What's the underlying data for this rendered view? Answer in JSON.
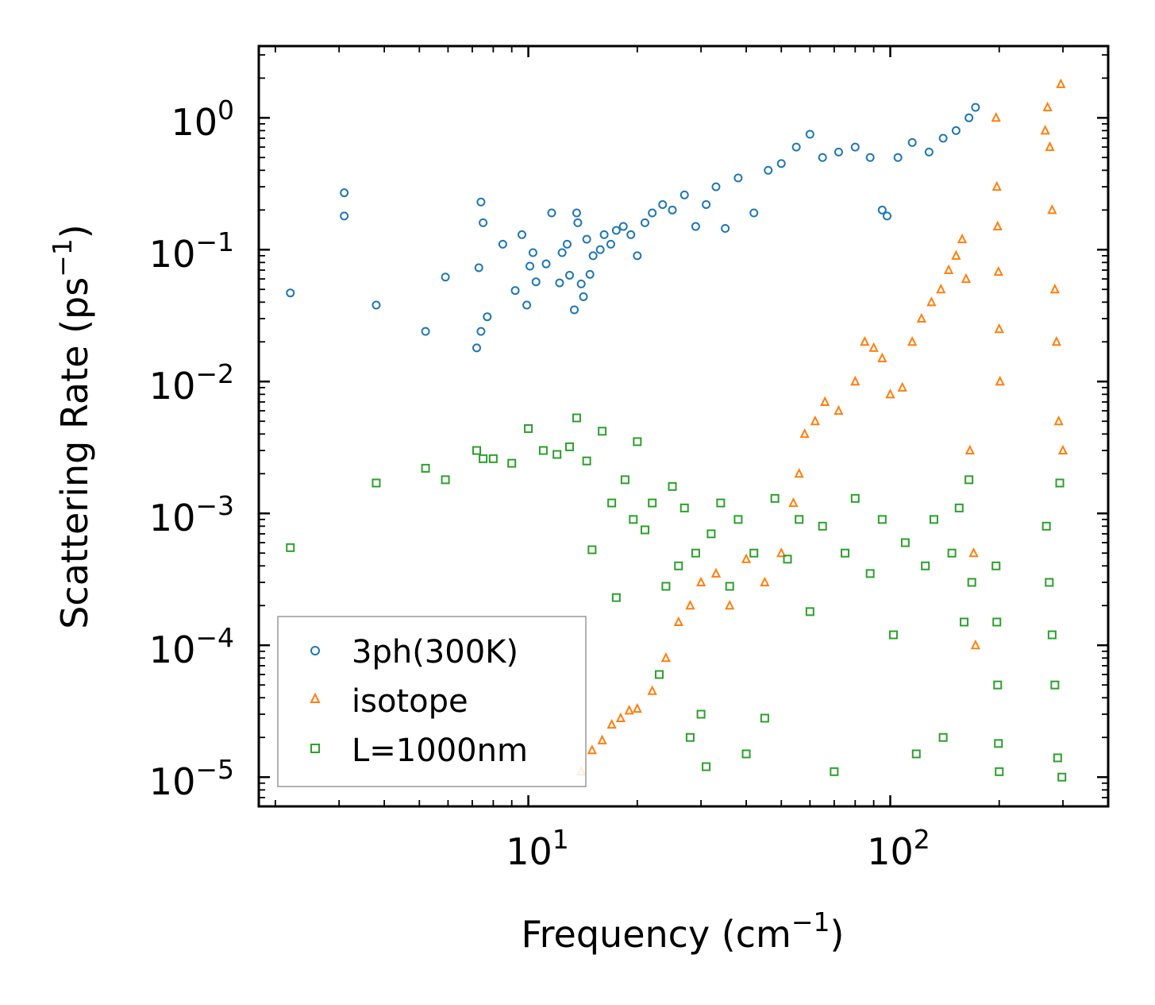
{
  "chart_data": {
    "type": "scatter",
    "title": "",
    "xscale": "log",
    "yscale": "log",
    "xlim": [
      1.8,
      400
    ],
    "ylim": [
      6e-06,
      3.5
    ],
    "xlabel": {
      "main": "Frequency (cm",
      "sup": "−1",
      "close": ")"
    },
    "ylabel": {
      "main": "Scattering Rate (ps",
      "sup": "−1",
      "close": ")"
    },
    "x_ticks": [
      {
        "base": "10",
        "exp": "1",
        "value": 10
      },
      {
        "base": "10",
        "exp": "2",
        "value": 100
      }
    ],
    "y_ticks": [
      {
        "base": "10",
        "exp": "0",
        "value": 1
      },
      {
        "base": "10",
        "exp": "−1",
        "value": 0.1
      },
      {
        "base": "10",
        "exp": "−2",
        "value": 0.01
      },
      {
        "base": "10",
        "exp": "−3",
        "value": 0.001
      },
      {
        "base": "10",
        "exp": "−4",
        "value": 0.0001
      },
      {
        "base": "10",
        "exp": "−5",
        "value": 1e-05
      }
    ],
    "legend_position": "bottom-left",
    "series": [
      {
        "name": "3ph(300K)",
        "marker": "circle",
        "color": "#1f77b4",
        "points": [
          [
            2.2,
            0.047
          ],
          [
            3.1,
            0.27
          ],
          [
            3.1,
            0.18
          ],
          [
            3.8,
            0.038
          ],
          [
            5.2,
            0.024
          ],
          [
            5.9,
            0.062
          ],
          [
            7.2,
            0.018
          ],
          [
            7.3,
            0.073
          ],
          [
            7.4,
            0.23
          ],
          [
            7.5,
            0.16
          ],
          [
            7.4,
            0.024
          ],
          [
            7.7,
            0.031
          ],
          [
            8.5,
            0.11
          ],
          [
            9.2,
            0.049
          ],
          [
            9.6,
            0.13
          ],
          [
            9.9,
            0.038
          ],
          [
            10.1,
            0.075
          ],
          [
            10.3,
            0.095
          ],
          [
            10.5,
            0.057
          ],
          [
            11.2,
            0.078
          ],
          [
            11.6,
            0.19
          ],
          [
            12.2,
            0.056
          ],
          [
            12.4,
            0.095
          ],
          [
            12.8,
            0.11
          ],
          [
            13.0,
            0.064
          ],
          [
            13.4,
            0.035
          ],
          [
            13.6,
            0.19
          ],
          [
            13.7,
            0.16
          ],
          [
            14.0,
            0.055
          ],
          [
            14.2,
            0.044
          ],
          [
            14.5,
            0.12
          ],
          [
            14.8,
            0.065
          ],
          [
            15.1,
            0.09
          ],
          [
            15.8,
            0.1
          ],
          [
            16.2,
            0.13
          ],
          [
            16.9,
            0.11
          ],
          [
            17.5,
            0.14
          ],
          [
            18.3,
            0.15
          ],
          [
            19.2,
            0.13
          ],
          [
            20.0,
            0.09
          ],
          [
            21.0,
            0.16
          ],
          [
            22.0,
            0.19
          ],
          [
            23.5,
            0.22
          ],
          [
            25.0,
            0.2
          ],
          [
            27.0,
            0.26
          ],
          [
            29.0,
            0.15
          ],
          [
            31.0,
            0.22
          ],
          [
            33.0,
            0.3
          ],
          [
            35.0,
            0.145
          ],
          [
            38.0,
            0.35
          ],
          [
            42.0,
            0.19
          ],
          [
            46.0,
            0.4
          ],
          [
            50.0,
            0.45
          ],
          [
            55.0,
            0.6
          ],
          [
            60.0,
            0.75
          ],
          [
            65.0,
            0.5
          ],
          [
            72.0,
            0.55
          ],
          [
            80.0,
            0.6
          ],
          [
            88.0,
            0.5
          ],
          [
            95.0,
            0.2
          ],
          [
            98.0,
            0.18
          ],
          [
            105.0,
            0.5
          ],
          [
            115.0,
            0.65
          ],
          [
            128.0,
            0.55
          ],
          [
            140.0,
            0.7
          ],
          [
            152.0,
            0.8
          ],
          [
            165.0,
            1.0
          ],
          [
            172.0,
            1.2
          ]
        ]
      },
      {
        "name": "isotope",
        "marker": "triangle",
        "color": "#ff7f0e",
        "points": [
          [
            14.0,
            1.1e-05
          ],
          [
            15.0,
            1.6e-05
          ],
          [
            16.0,
            1.9e-05
          ],
          [
            17.0,
            2.5e-05
          ],
          [
            18.0,
            2.8e-05
          ],
          [
            19.0,
            3.2e-05
          ],
          [
            20.0,
            3.3e-05
          ],
          [
            22.0,
            4.5e-05
          ],
          [
            24.0,
            8e-05
          ],
          [
            26.0,
            0.00015
          ],
          [
            28.0,
            0.0002
          ],
          [
            30.0,
            0.0003
          ],
          [
            33.0,
            0.00035
          ],
          [
            36.0,
            0.0002
          ],
          [
            40.0,
            0.00045
          ],
          [
            45.0,
            0.0003
          ],
          [
            50.0,
            0.0005
          ],
          [
            54.0,
            0.0012
          ],
          [
            56.0,
            0.002
          ],
          [
            58.0,
            0.004
          ],
          [
            62.0,
            0.005
          ],
          [
            66.0,
            0.007
          ],
          [
            72.0,
            0.006
          ],
          [
            80.0,
            0.01
          ],
          [
            85.0,
            0.02
          ],
          [
            90.0,
            0.018
          ],
          [
            95.0,
            0.015
          ],
          [
            100.0,
            0.008
          ],
          [
            108.0,
            0.009
          ],
          [
            115.0,
            0.02
          ],
          [
            122.0,
            0.03
          ],
          [
            130.0,
            0.04
          ],
          [
            138.0,
            0.05
          ],
          [
            145.0,
            0.07
          ],
          [
            152.0,
            0.09
          ],
          [
            158.0,
            0.12
          ],
          [
            162.0,
            0.06
          ],
          [
            166.0,
            0.003
          ],
          [
            170.0,
            0.0005
          ],
          [
            172.0,
            0.0001
          ],
          [
            196.0,
            1.0
          ],
          [
            197.0,
            0.3
          ],
          [
            198.0,
            0.15
          ],
          [
            199.0,
            0.068
          ],
          [
            200.0,
            0.025
          ],
          [
            201.0,
            0.01
          ],
          [
            268.0,
            0.8
          ],
          [
            272.0,
            1.2
          ],
          [
            276.0,
            0.6
          ],
          [
            280.0,
            0.2
          ],
          [
            285.0,
            0.05
          ],
          [
            288.0,
            0.02
          ],
          [
            292.0,
            0.005
          ],
          [
            296.0,
            1.8
          ],
          [
            300.0,
            0.003
          ]
        ]
      },
      {
        "name": "L=1000nm",
        "marker": "square",
        "color": "#2ca02c",
        "points": [
          [
            2.2,
            0.00055
          ],
          [
            3.8,
            0.0017
          ],
          [
            5.2,
            0.0022
          ],
          [
            5.9,
            0.0018
          ],
          [
            7.2,
            0.003
          ],
          [
            7.5,
            0.0026
          ],
          [
            8.0,
            0.0026
          ],
          [
            9.0,
            0.0024
          ],
          [
            10.0,
            0.0044
          ],
          [
            11.0,
            0.003
          ],
          [
            12.0,
            0.0028
          ],
          [
            13.0,
            0.0032
          ],
          [
            13.6,
            0.0053
          ],
          [
            14.5,
            0.0025
          ],
          [
            15.0,
            0.00053
          ],
          [
            16.0,
            0.0042
          ],
          [
            17.0,
            0.0012
          ],
          [
            17.5,
            0.00023
          ],
          [
            18.5,
            0.0018
          ],
          [
            19.5,
            0.0009
          ],
          [
            20.0,
            0.0035
          ],
          [
            21.0,
            0.00075
          ],
          [
            22.0,
            0.0012
          ],
          [
            23.0,
            6e-05
          ],
          [
            24.0,
            0.00028
          ],
          [
            25.0,
            0.0016
          ],
          [
            26.0,
            0.0004
          ],
          [
            27.0,
            0.0011
          ],
          [
            28.0,
            2e-05
          ],
          [
            29.0,
            0.0005
          ],
          [
            30.0,
            3e-05
          ],
          [
            31.0,
            1.2e-05
          ],
          [
            32.0,
            0.0007
          ],
          [
            34.0,
            0.0012
          ],
          [
            36.0,
            0.00028
          ],
          [
            38.0,
            0.0009
          ],
          [
            40.0,
            1.5e-05
          ],
          [
            42.0,
            0.0005
          ],
          [
            45.0,
            2.8e-05
          ],
          [
            48.0,
            0.0013
          ],
          [
            52.0,
            0.00045
          ],
          [
            56.0,
            0.0009
          ],
          [
            60.0,
            0.00018
          ],
          [
            65.0,
            0.0008
          ],
          [
            70.0,
            1.1e-05
          ],
          [
            75.0,
            0.0005
          ],
          [
            80.0,
            0.0013
          ],
          [
            88.0,
            0.00035
          ],
          [
            95.0,
            0.0009
          ],
          [
            102.0,
            0.00012
          ],
          [
            110.0,
            0.0006
          ],
          [
            118.0,
            1.5e-05
          ],
          [
            125.0,
            0.0004
          ],
          [
            132.0,
            0.0009
          ],
          [
            140.0,
            2e-05
          ],
          [
            148.0,
            0.0005
          ],
          [
            155.0,
            0.0011
          ],
          [
            160.0,
            0.00015
          ],
          [
            165.0,
            0.0018
          ],
          [
            168.0,
            0.0003
          ],
          [
            196.0,
            0.0004
          ],
          [
            197.0,
            0.00015
          ],
          [
            198.0,
            5e-05
          ],
          [
            199.0,
            1.8e-05
          ],
          [
            200.0,
            1.1e-05
          ],
          [
            270.0,
            0.0008
          ],
          [
            275.0,
            0.0003
          ],
          [
            280.0,
            0.00012
          ],
          [
            285.0,
            5e-05
          ],
          [
            290.0,
            1.4e-05
          ],
          [
            294.0,
            0.0017
          ],
          [
            298.0,
            1e-05
          ]
        ]
      }
    ]
  }
}
